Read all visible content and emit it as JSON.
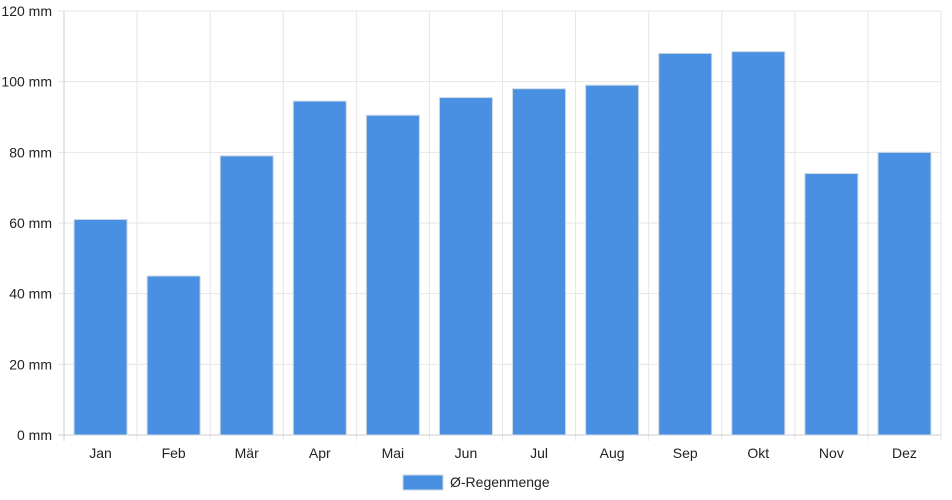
{
  "chart_data": {
    "type": "bar",
    "categories": [
      "Jan",
      "Feb",
      "Mär",
      "Apr",
      "Mai",
      "Jun",
      "Jul",
      "Aug",
      "Sep",
      "Okt",
      "Nov",
      "Dez"
    ],
    "series": [
      {
        "name": "Ø-Regenmenge",
        "color": "#4a90e2",
        "values": [
          61,
          45,
          79,
          94.5,
          90.5,
          95.5,
          98,
          99,
          108,
          108.5,
          74,
          80
        ]
      }
    ],
    "yticks": [
      "0 mm",
      "20 mm",
      "40 mm",
      "60 mm",
      "80 mm",
      "100 mm",
      "120 mm"
    ],
    "ylim": [
      0,
      120
    ],
    "grid": true,
    "legend_position": "bottom-center",
    "colors": {
      "grid": "#e6e6e6",
      "axis": "#cccccc",
      "bar_border": "#cfd8e3"
    }
  }
}
